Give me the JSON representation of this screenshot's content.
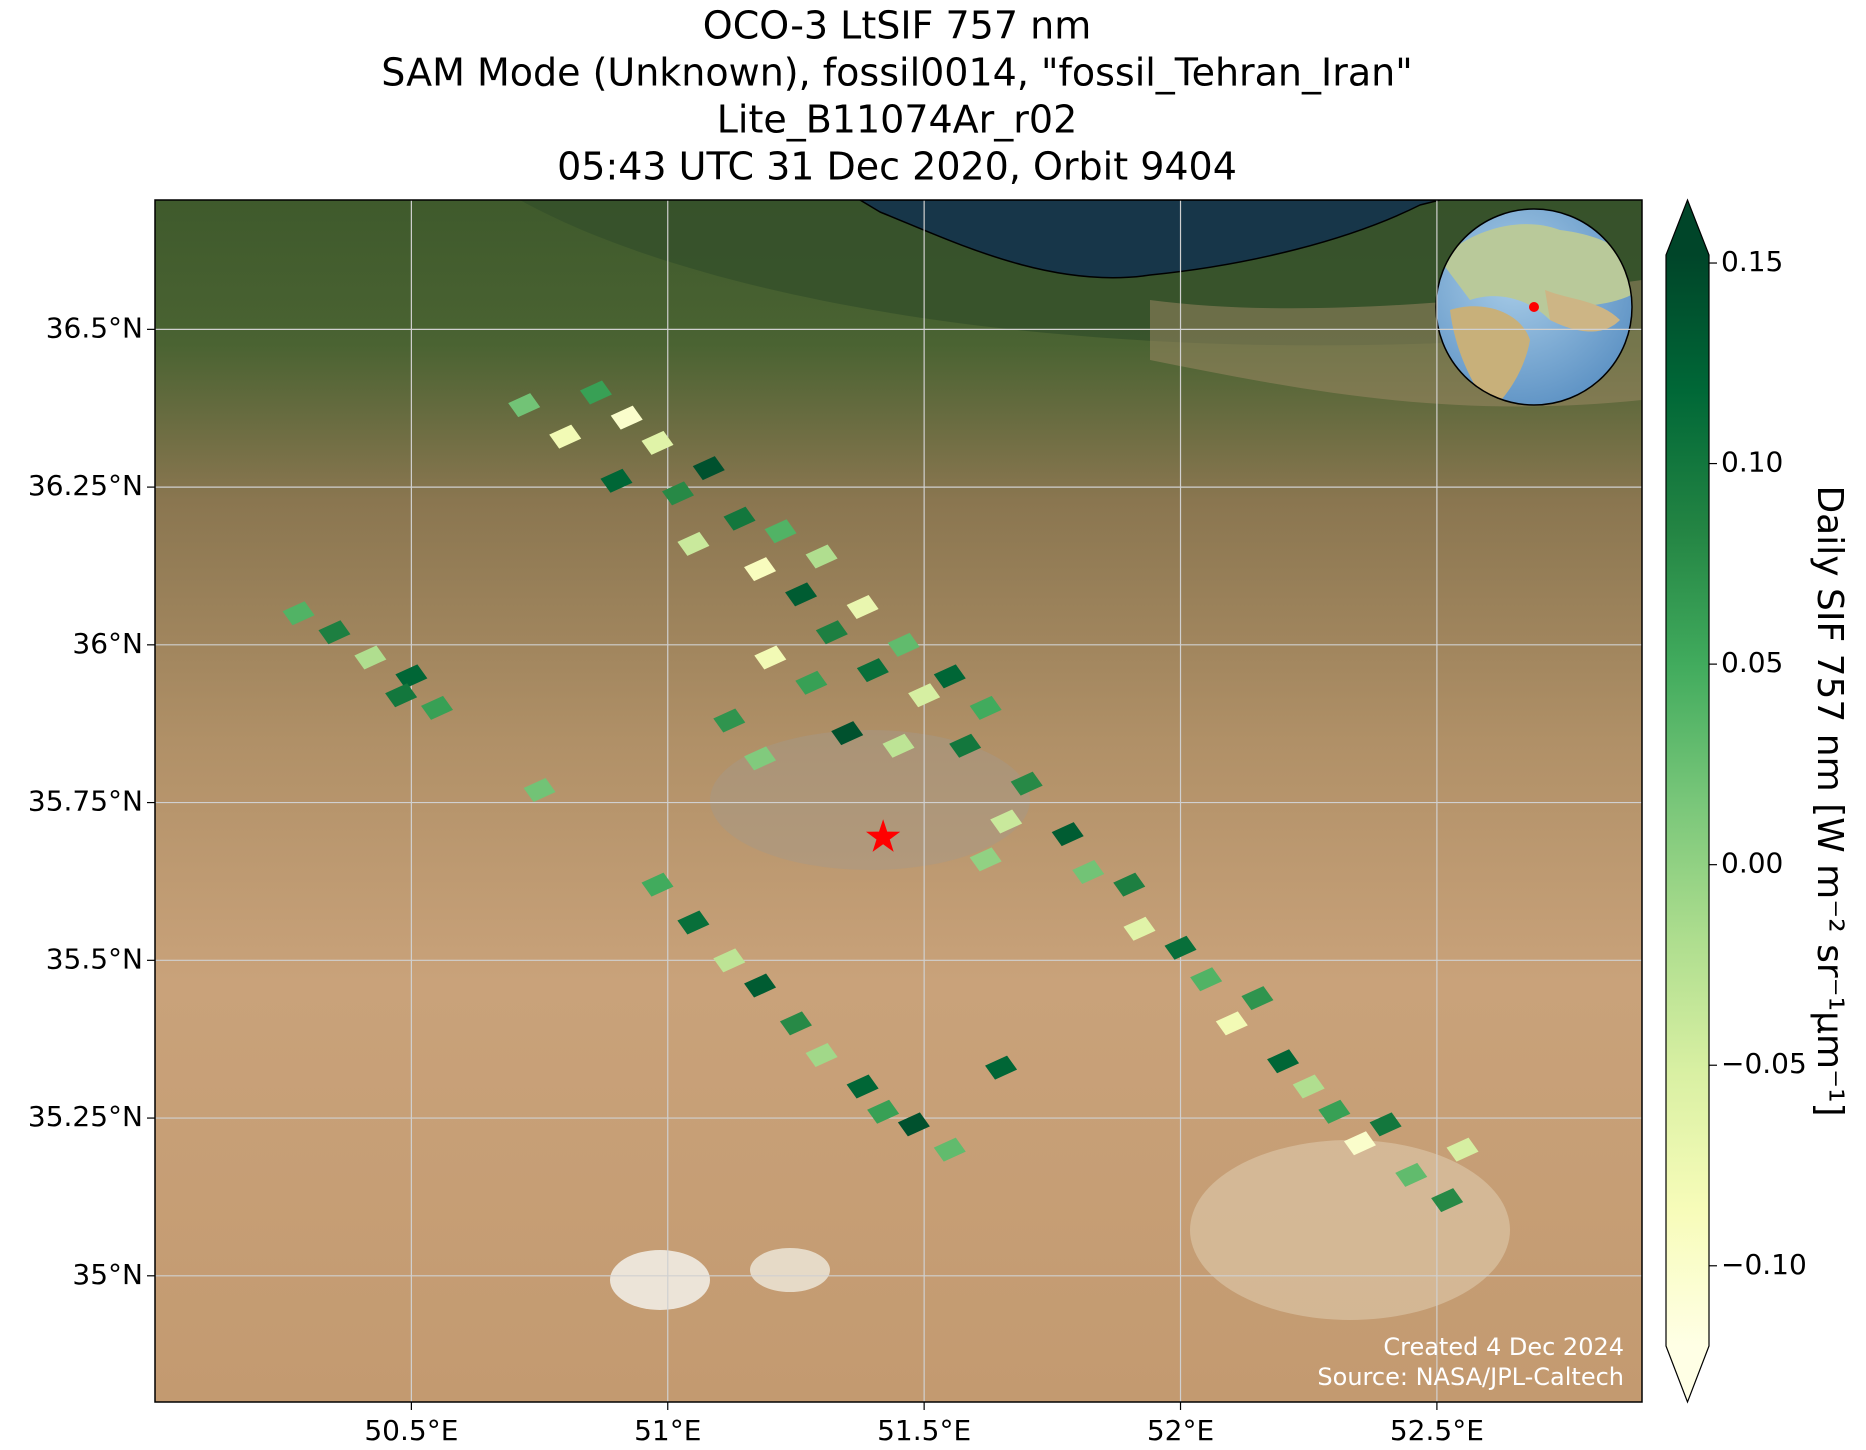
{
  "chart_data": {
    "type": "map",
    "title": [
      "OCO-3 LtSIF 757 nm",
      "SAM Mode (Unknown), fossil0014, \"fossil_Tehran_Iran\"",
      "Lite_B11074Ar_r02",
      "05:43 UTC 31 Dec 2020, Orbit 9404"
    ],
    "xlim": [
      50.0,
      52.9
    ],
    "ylim": [
      34.8,
      36.705
    ],
    "xticks": [
      {
        "value": 50.5,
        "label": "50.5°E"
      },
      {
        "value": 51,
        "label": "51°E"
      },
      {
        "value": 51.5,
        "label": "51.5°E"
      },
      {
        "value": 52,
        "label": "52°E"
      },
      {
        "value": 52.5,
        "label": "52.5°E"
      }
    ],
    "yticks": [
      {
        "value": 35,
        "label": "35°N"
      },
      {
        "value": 35.25,
        "label": "35.25°N"
      },
      {
        "value": 35.5,
        "label": "35.5°N"
      },
      {
        "value": 35.75,
        "label": "35.75°N"
      },
      {
        "value": 36,
        "label": "36°N"
      },
      {
        "value": 36.25,
        "label": "36.25°N"
      },
      {
        "value": 36.5,
        "label": "36.5°N"
      }
    ],
    "grid": true,
    "colorbar": {
      "label": "Daily SIF 757 nm [W m⁻² sr⁻¹µm⁻¹]",
      "clim": [
        -0.12,
        0.152
      ],
      "ticks": [
        {
          "value": 0.15,
          "label": "0.15"
        },
        {
          "value": 0.1,
          "label": "0.10"
        },
        {
          "value": 0.05,
          "label": "0.05"
        },
        {
          "value": 0,
          "label": "0.00"
        },
        {
          "value": -0.05,
          "label": "−0.05"
        },
        {
          "value": -0.1,
          "label": "−0.10"
        }
      ],
      "cmap": [
        "#ffffe5",
        "#f7fcb9",
        "#d9f0a3",
        "#addd8e",
        "#78c679",
        "#41ab5d",
        "#238443",
        "#006837",
        "#004529"
      ]
    },
    "soundings": {
      "lon": [
        50.72,
        50.8,
        50.86,
        50.92,
        50.9,
        50.98,
        51.02,
        51.08,
        51.05,
        51.14,
        51.18,
        51.22,
        51.26,
        51.3,
        51.32,
        51.38,
        51.4,
        51.46,
        51.5,
        51.55,
        51.28,
        51.2,
        51.12,
        51.18,
        51.35,
        51.45,
        51.58,
        51.62,
        51.7,
        51.66,
        51.78,
        51.82,
        51.9,
        51.92,
        52.0,
        52.05,
        52.1,
        52.15,
        52.2,
        52.25,
        52.3,
        52.35,
        52.4,
        52.45,
        52.52,
        52.55,
        50.28,
        50.35,
        50.42,
        50.5,
        50.55,
        50.48,
        50.98,
        51.05,
        51.12,
        51.18,
        51.25,
        51.3,
        51.38,
        51.42,
        51.48,
        51.55,
        50.75,
        51.65,
        51.62
      ],
      "lat": [
        36.38,
        36.33,
        36.4,
        36.36,
        36.26,
        36.32,
        36.24,
        36.28,
        36.16,
        36.2,
        36.12,
        36.18,
        36.08,
        36.14,
        36.02,
        36.06,
        35.96,
        36.0,
        35.92,
        35.95,
        35.94,
        35.98,
        35.88,
        35.82,
        35.86,
        35.84,
        35.84,
        35.9,
        35.78,
        35.72,
        35.7,
        35.64,
        35.62,
        35.55,
        35.52,
        35.47,
        35.4,
        35.44,
        35.34,
        35.3,
        35.26,
        35.21,
        35.24,
        35.16,
        35.12,
        35.2,
        36.05,
        36.02,
        35.98,
        35.95,
        35.9,
        35.92,
        35.62,
        35.56,
        35.5,
        35.46,
        35.4,
        35.35,
        35.3,
        35.26,
        35.24,
        35.2,
        35.77,
        35.33,
        35.66
      ],
      "values": [
        0.02,
        -0.08,
        0.06,
        -0.1,
        0.12,
        -0.06,
        0.08,
        0.14,
        -0.04,
        0.1,
        -0.09,
        0.04,
        0.13,
        -0.02,
        0.09,
        -0.07,
        0.11,
        0.03,
        -0.05,
        0.12,
        0.06,
        -0.08,
        0.07,
        0.01,
        0.14,
        -0.03,
        0.1,
        0.05,
        0.08,
        -0.04,
        0.13,
        0.02,
        0.09,
        -0.06,
        0.11,
        0.04,
        -0.08,
        0.07,
        0.12,
        -0.02,
        0.06,
        -0.1,
        0.1,
        0.03,
        0.08,
        -0.05,
        0.04,
        0.09,
        -0.02,
        0.12,
        0.06,
        0.1,
        0.05,
        0.11,
        -0.03,
        0.13,
        0.08,
        -0.01,
        0.12,
        0.06,
        0.14,
        0.03,
        0.02,
        0.12,
        0.0
      ]
    },
    "target": {
      "lon": 51.42,
      "lat": 35.695,
      "color": "#ff0000"
    },
    "footer": [
      "Created 4 Dec 2024",
      "Source: NASA/JPL-Caltech"
    ]
  }
}
